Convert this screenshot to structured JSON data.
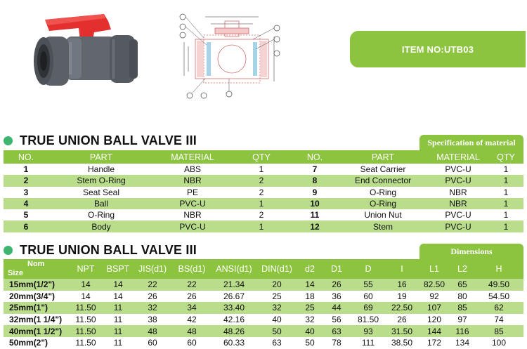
{
  "item_badge": "ITEM NO:UTB03",
  "colors": {
    "accent": "#8cc43f",
    "row_alt": "#b9dd8a",
    "dot": "#3db56f",
    "handle": "#e3302f",
    "pvc": "#5a5f66"
  },
  "spec": {
    "title": "TRUE UNION BALL VALVE III",
    "tag": "Specification of material",
    "headers": [
      "NO.",
      "PART",
      "MATERIAL",
      "QTY",
      "NO.",
      "PART",
      "MATERIAL",
      "QTY"
    ],
    "rows": [
      [
        "1",
        "Handle",
        "ABS",
        "1",
        "7",
        "Seat Carrier",
        "PVC-U",
        "1"
      ],
      [
        "2",
        "Stem O-Ring",
        "NBR",
        "2",
        "8",
        "End Connector",
        "PVC-U",
        "1"
      ],
      [
        "3",
        "Seat Seal",
        "PE",
        "2",
        "9",
        "O-Ring",
        "NBR",
        "1"
      ],
      [
        "4",
        "Ball",
        "PVC-U",
        "1",
        "10",
        "O-Ring",
        "NBR",
        "1"
      ],
      [
        "5",
        "O-Ring",
        "NBR",
        "2",
        "11",
        "Union Nut",
        "PVC-U",
        "1"
      ],
      [
        "6",
        "Body",
        "PVC-U",
        "1",
        "12",
        "Stem",
        "PVC-U",
        "1"
      ]
    ]
  },
  "dims": {
    "title": "TRUE UNION BALL VALVE III",
    "tag": "Dimensions",
    "nom_label": "Nom",
    "size_label": "Size",
    "headers": [
      "NPT",
      "BSPT",
      "JIS(d1)",
      "BS(d1)",
      "ANSI(d1)",
      "DIN(d1)",
      "d2",
      "D1",
      "D",
      "I",
      "L1",
      "L2",
      "H"
    ],
    "rows": [
      [
        "15mm(1/2\")",
        "14",
        "14",
        "22",
        "22",
        "21.34",
        "20",
        "14",
        "26",
        "55",
        "16",
        "82.50",
        "65",
        "49.50"
      ],
      [
        "20mm(3/4\")",
        "14",
        "14",
        "26",
        "26",
        "26.67",
        "25",
        "18",
        "36",
        "60",
        "19",
        "92",
        "80",
        "54.50"
      ],
      [
        "25mm(1\")",
        "11.50",
        "11",
        "32",
        "34",
        "33.40",
        "32",
        "25",
        "44",
        "69",
        "22.50",
        "107",
        "85",
        "62"
      ],
      [
        "32mm(1 1/4\")",
        "11.50",
        "11",
        "38",
        "42",
        "42.16",
        "40",
        "32",
        "56",
        "81.50",
        "26",
        "120",
        "97",
        "74"
      ],
      [
        "40mm(1 1/2\")",
        "11.50",
        "11",
        "48",
        "48",
        "48.26",
        "50",
        "40",
        "63",
        "93",
        "31.50",
        "144",
        "116",
        "85"
      ],
      [
        "50mm(2\")",
        "11.50",
        "11",
        "60",
        "60",
        "60.33",
        "63",
        "50",
        "78",
        "111",
        "38.50",
        "172",
        "134",
        "100"
      ]
    ]
  }
}
